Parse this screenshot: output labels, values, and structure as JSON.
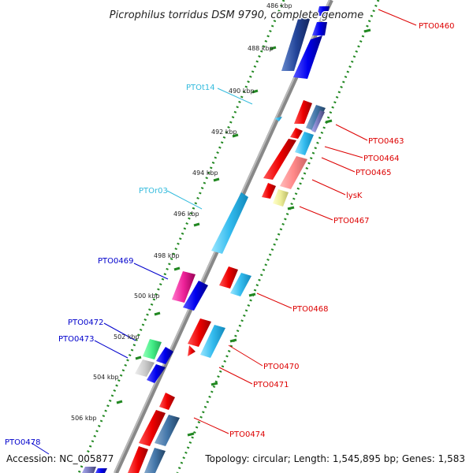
{
  "title": "Picrophilus torridus DSM 9790, complete genome",
  "footer": {
    "accession": "Accession: NC_005877",
    "summary": "Topology: circular; Length: 1,545,895 bp; Genes: 1,583"
  },
  "ruler": {
    "ticks": [
      "486 kbp",
      "488 kbp",
      "490 kbp",
      "492 kbp",
      "494 kbp",
      "496 kbp",
      "498 kbp",
      "500 kbp",
      "502 kbp",
      "504 kbp",
      "506 kbp"
    ]
  },
  "gene_labels": {
    "right": [
      "PTO0460",
      "PTO0463",
      "PTO0464",
      "PTO0465",
      "lysK",
      "PTO0467",
      "PTO0468",
      "PTO0470",
      "PTO0471",
      "PTO0474"
    ],
    "left": [
      "PTOt14",
      "PTOr03",
      "PTO0469",
      "PTO0472",
      "PTO0473",
      "PTO0478"
    ]
  },
  "colors": {
    "forward_label": "#dd0000",
    "reverse_label": "#0000cc",
    "rna_label": "#33bbdd",
    "backbone": "#888888",
    "ruler_dots": "#228822"
  }
}
